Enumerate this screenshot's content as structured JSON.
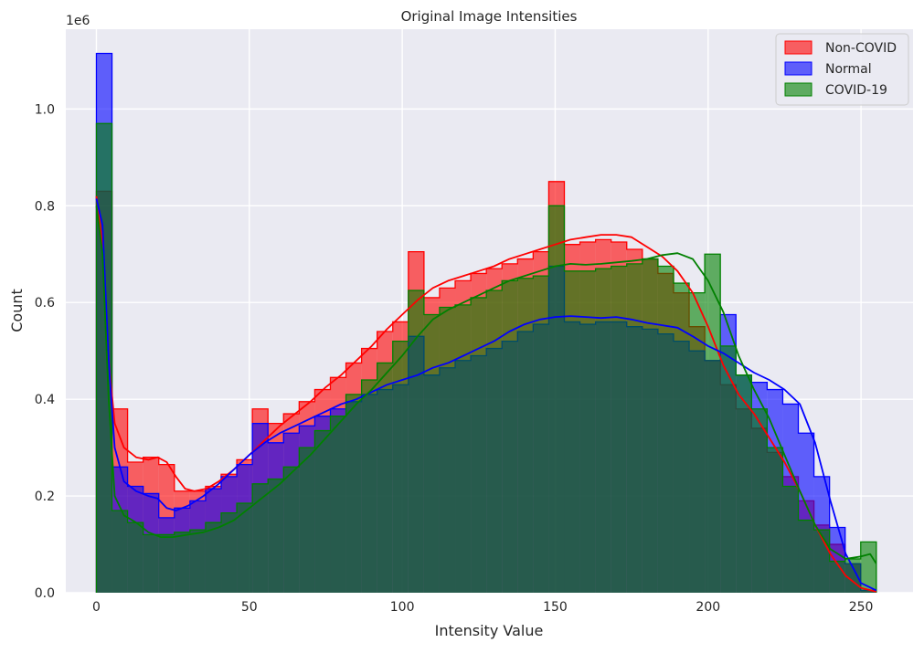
{
  "chart_data": {
    "type": "area",
    "title": "Original Image Intensities",
    "xlabel": "Intensity Value",
    "ylabel": "Count",
    "y_scale_label": "1e6",
    "xlim": [
      -10,
      267
    ],
    "ylim": [
      0,
      1.165
    ],
    "y_scale": 1000000,
    "x_ticks": [
      0,
      50,
      100,
      150,
      200,
      250
    ],
    "x_tick_labels": [
      "0",
      "50",
      "100",
      "150",
      "200",
      "250"
    ],
    "y_ticks": [
      0.0,
      0.2,
      0.4,
      0.6,
      0.8,
      1.0
    ],
    "y_tick_labels": [
      "0.0",
      "0.2",
      "0.4",
      "0.6",
      "0.8",
      "1.0"
    ],
    "grid": true,
    "legend_position": "top-right",
    "bins": {
      "start": 0,
      "width": 5.1,
      "count": 50
    },
    "series": [
      {
        "name": "Non-COVID",
        "color": "#ff0000",
        "values": [
          0.83,
          0.38,
          0.27,
          0.28,
          0.265,
          0.21,
          0.21,
          0.22,
          0.245,
          0.275,
          0.38,
          0.35,
          0.37,
          0.395,
          0.42,
          0.445,
          0.475,
          0.505,
          0.54,
          0.56,
          0.705,
          0.61,
          0.63,
          0.645,
          0.66,
          0.67,
          0.68,
          0.69,
          0.705,
          0.85,
          0.72,
          0.725,
          0.73,
          0.725,
          0.71,
          0.69,
          0.66,
          0.62,
          0.55,
          0.48,
          0.43,
          0.38,
          0.34,
          0.29,
          0.24,
          0.19,
          0.14,
          0.1,
          0.06,
          0.005
        ],
        "kde": [
          [
            0,
            0.82
          ],
          [
            2,
            0.72
          ],
          [
            4,
            0.48
          ],
          [
            6,
            0.35
          ],
          [
            9,
            0.3
          ],
          [
            13,
            0.28
          ],
          [
            17,
            0.275
          ],
          [
            20,
            0.28
          ],
          [
            23,
            0.27
          ],
          [
            26,
            0.24
          ],
          [
            29,
            0.215
          ],
          [
            32,
            0.21
          ],
          [
            36,
            0.215
          ],
          [
            40,
            0.23
          ],
          [
            45,
            0.255
          ],
          [
            50,
            0.285
          ],
          [
            55,
            0.315
          ],
          [
            60,
            0.345
          ],
          [
            65,
            0.37
          ],
          [
            70,
            0.395
          ],
          [
            75,
            0.425
          ],
          [
            80,
            0.45
          ],
          [
            85,
            0.48
          ],
          [
            90,
            0.51
          ],
          [
            95,
            0.545
          ],
          [
            100,
            0.575
          ],
          [
            105,
            0.605
          ],
          [
            110,
            0.63
          ],
          [
            115,
            0.645
          ],
          [
            120,
            0.655
          ],
          [
            125,
            0.665
          ],
          [
            130,
            0.675
          ],
          [
            135,
            0.69
          ],
          [
            140,
            0.7
          ],
          [
            145,
            0.71
          ],
          [
            150,
            0.72
          ],
          [
            155,
            0.73
          ],
          [
            160,
            0.735
          ],
          [
            165,
            0.74
          ],
          [
            170,
            0.74
          ],
          [
            175,
            0.735
          ],
          [
            180,
            0.715
          ],
          [
            185,
            0.695
          ],
          [
            190,
            0.665
          ],
          [
            195,
            0.62
          ],
          [
            200,
            0.55
          ],
          [
            205,
            0.47
          ],
          [
            210,
            0.41
          ],
          [
            215,
            0.37
          ],
          [
            220,
            0.32
          ],
          [
            225,
            0.27
          ],
          [
            230,
            0.21
          ],
          [
            235,
            0.14
          ],
          [
            240,
            0.08
          ],
          [
            245,
            0.035
          ],
          [
            250,
            0.01
          ],
          [
            255,
            0.002
          ]
        ]
      },
      {
        "name": "Normal",
        "color": "#0000ff",
        "values": [
          1.115,
          0.26,
          0.22,
          0.205,
          0.155,
          0.175,
          0.19,
          0.215,
          0.24,
          0.265,
          0.35,
          0.31,
          0.33,
          0.345,
          0.365,
          0.38,
          0.395,
          0.41,
          0.42,
          0.43,
          0.53,
          0.45,
          0.465,
          0.48,
          0.49,
          0.505,
          0.52,
          0.54,
          0.555,
          0.675,
          0.56,
          0.555,
          0.56,
          0.56,
          0.55,
          0.545,
          0.535,
          0.52,
          0.5,
          0.48,
          0.575,
          0.45,
          0.435,
          0.42,
          0.39,
          0.33,
          0.24,
          0.135,
          0.06,
          0.005
        ],
        "kde": [
          [
            0,
            0.815
          ],
          [
            2,
            0.76
          ],
          [
            4,
            0.48
          ],
          [
            6,
            0.3
          ],
          [
            9,
            0.23
          ],
          [
            13,
            0.21
          ],
          [
            17,
            0.2
          ],
          [
            20,
            0.195
          ],
          [
            23,
            0.175
          ],
          [
            26,
            0.17
          ],
          [
            30,
            0.18
          ],
          [
            35,
            0.2
          ],
          [
            40,
            0.225
          ],
          [
            45,
            0.255
          ],
          [
            50,
            0.285
          ],
          [
            55,
            0.31
          ],
          [
            60,
            0.33
          ],
          [
            65,
            0.345
          ],
          [
            70,
            0.36
          ],
          [
            75,
            0.375
          ],
          [
            80,
            0.39
          ],
          [
            85,
            0.4
          ],
          [
            90,
            0.415
          ],
          [
            95,
            0.43
          ],
          [
            100,
            0.44
          ],
          [
            105,
            0.45
          ],
          [
            110,
            0.465
          ],
          [
            115,
            0.475
          ],
          [
            120,
            0.49
          ],
          [
            125,
            0.505
          ],
          [
            130,
            0.52
          ],
          [
            135,
            0.54
          ],
          [
            140,
            0.555
          ],
          [
            145,
            0.565
          ],
          [
            150,
            0.57
          ],
          [
            155,
            0.572
          ],
          [
            160,
            0.57
          ],
          [
            165,
            0.568
          ],
          [
            170,
            0.57
          ],
          [
            175,
            0.565
          ],
          [
            180,
            0.558
          ],
          [
            185,
            0.553
          ],
          [
            190,
            0.548
          ],
          [
            195,
            0.53
          ],
          [
            200,
            0.51
          ],
          [
            205,
            0.495
          ],
          [
            210,
            0.475
          ],
          [
            215,
            0.455
          ],
          [
            220,
            0.44
          ],
          [
            225,
            0.42
          ],
          [
            230,
            0.39
          ],
          [
            235,
            0.31
          ],
          [
            240,
            0.19
          ],
          [
            245,
            0.08
          ],
          [
            250,
            0.02
          ],
          [
            255,
            0.005
          ]
        ]
      },
      {
        "name": "COVID-19",
        "color": "#008000",
        "values": [
          0.97,
          0.17,
          0.145,
          0.12,
          0.12,
          0.125,
          0.13,
          0.145,
          0.165,
          0.185,
          0.225,
          0.235,
          0.26,
          0.3,
          0.335,
          0.365,
          0.41,
          0.44,
          0.475,
          0.52,
          0.625,
          0.575,
          0.59,
          0.595,
          0.61,
          0.625,
          0.645,
          0.65,
          0.655,
          0.8,
          0.665,
          0.665,
          0.67,
          0.675,
          0.68,
          0.69,
          0.675,
          0.64,
          0.62,
          0.7,
          0.51,
          0.45,
          0.38,
          0.3,
          0.22,
          0.15,
          0.13,
          0.065,
          0.07,
          0.105
        ],
        "kde": [
          [
            0,
            0.8
          ],
          [
            2,
            0.7
          ],
          [
            4,
            0.4
          ],
          [
            6,
            0.2
          ],
          [
            9,
            0.16
          ],
          [
            13,
            0.145
          ],
          [
            17,
            0.125
          ],
          [
            21,
            0.115
          ],
          [
            25,
            0.115
          ],
          [
            30,
            0.12
          ],
          [
            35,
            0.125
          ],
          [
            40,
            0.135
          ],
          [
            45,
            0.15
          ],
          [
            50,
            0.175
          ],
          [
            55,
            0.2
          ],
          [
            60,
            0.225
          ],
          [
            65,
            0.255
          ],
          [
            70,
            0.285
          ],
          [
            75,
            0.32
          ],
          [
            80,
            0.355
          ],
          [
            85,
            0.39
          ],
          [
            90,
            0.42
          ],
          [
            95,
            0.455
          ],
          [
            100,
            0.49
          ],
          [
            105,
            0.53
          ],
          [
            110,
            0.565
          ],
          [
            115,
            0.585
          ],
          [
            120,
            0.6
          ],
          [
            125,
            0.615
          ],
          [
            130,
            0.63
          ],
          [
            135,
            0.645
          ],
          [
            140,
            0.655
          ],
          [
            145,
            0.665
          ],
          [
            150,
            0.675
          ],
          [
            155,
            0.68
          ],
          [
            160,
            0.678
          ],
          [
            165,
            0.68
          ],
          [
            170,
            0.683
          ],
          [
            175,
            0.686
          ],
          [
            180,
            0.69
          ],
          [
            185,
            0.698
          ],
          [
            190,
            0.702
          ],
          [
            195,
            0.69
          ],
          [
            200,
            0.645
          ],
          [
            205,
            0.58
          ],
          [
            210,
            0.49
          ],
          [
            215,
            0.42
          ],
          [
            220,
            0.36
          ],
          [
            225,
            0.285
          ],
          [
            230,
            0.21
          ],
          [
            235,
            0.14
          ],
          [
            240,
            0.09
          ],
          [
            245,
            0.07
          ],
          [
            250,
            0.075
          ],
          [
            253,
            0.08
          ],
          [
            255,
            0.06
          ]
        ]
      }
    ]
  }
}
